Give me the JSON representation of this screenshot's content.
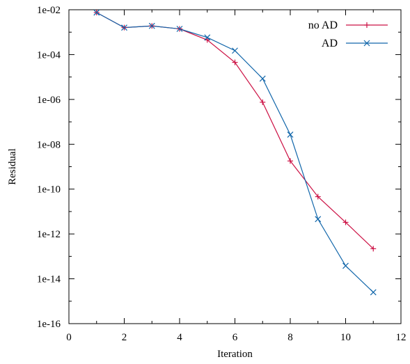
{
  "chart_data": {
    "type": "line",
    "title": "",
    "xlabel": "Iteration",
    "ylabel": "Residual",
    "xlim": [
      0,
      12
    ],
    "ylim": [
      1e-16,
      0.01
    ],
    "yscale": "log",
    "grid": false,
    "legend_position": "top-right",
    "x_ticks": [
      0,
      2,
      4,
      6,
      8,
      10,
      12
    ],
    "x_tick_labels": [
      "0",
      "2",
      "4",
      "6",
      "8",
      "10",
      "12"
    ],
    "y_ticks": [
      1e-16,
      1e-14,
      1e-12,
      1e-10,
      1e-08,
      1e-06,
      0.0001,
      0.01
    ],
    "y_tick_labels": [
      "1e-16",
      "1e-14",
      "1e-12",
      "1e-10",
      "1e-08",
      "1e-06",
      "1e-04",
      "1e-02"
    ],
    "x": [
      1,
      2,
      3,
      4,
      5,
      6,
      7,
      8,
      9,
      10,
      11
    ],
    "series": [
      {
        "name": "no AD",
        "color": "#cc1144",
        "marker": "plus",
        "values": [
          0.0075,
          0.0016,
          0.0019,
          0.0014,
          0.00045,
          4.5e-05,
          7.5e-07,
          1.8e-09,
          4.6e-11,
          3.3e-12,
          2.2e-13
        ]
      },
      {
        "name": "AD",
        "color": "#1166aa",
        "marker": "cross",
        "values": [
          0.0075,
          0.0016,
          0.0019,
          0.0014,
          0.00058,
          0.00015,
          8.5e-06,
          2.7e-08,
          4.6e-12,
          3.8e-14,
          2.5e-15
        ]
      }
    ]
  }
}
